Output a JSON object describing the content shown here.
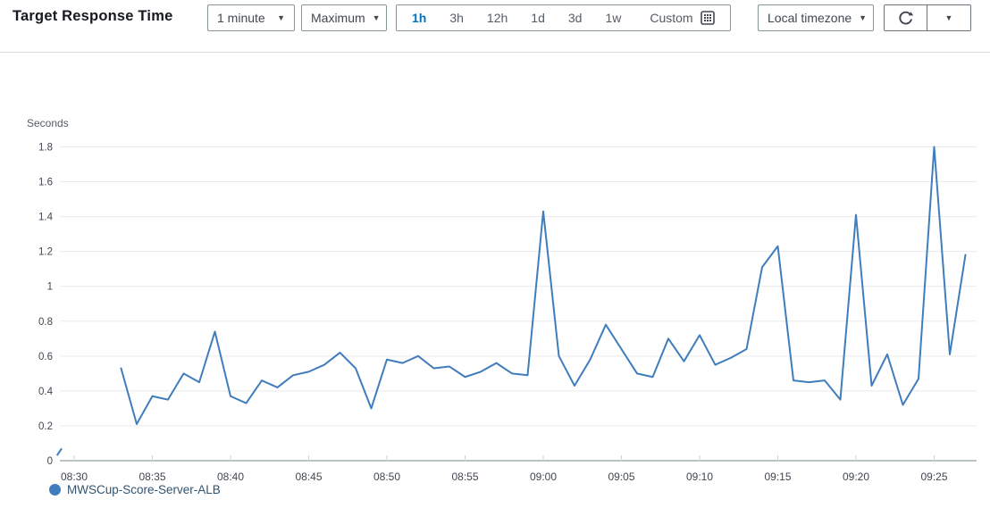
{
  "header": {
    "title": "Target Response Time",
    "period_dropdown": {
      "value": "1 minute"
    },
    "statistic_dropdown": {
      "value": "Maximum"
    },
    "range_options": [
      {
        "label": "1h",
        "selected": true
      },
      {
        "label": "3h",
        "selected": false
      },
      {
        "label": "12h",
        "selected": false
      },
      {
        "label": "1d",
        "selected": false
      },
      {
        "label": "3d",
        "selected": false
      },
      {
        "label": "1w",
        "selected": false
      }
    ],
    "custom_label": "Custom",
    "timezone_dropdown": {
      "value": "Local timezone"
    }
  },
  "colors": {
    "accent_selected_range": "#0073bb",
    "series_blue": "#3f7dbd",
    "grid_line": "#e9eaec",
    "zero_axis": "#bcc3c5",
    "tick_label": "#414750",
    "control_text": "#545b64"
  },
  "chart_data": {
    "type": "line",
    "title": "Target Response Time",
    "ylabel": "Seconds",
    "xlabel": "",
    "ylim": [
      0,
      1.8
    ],
    "grid": true,
    "legend_position": "bottom-left",
    "y_ticks": [
      0,
      0.2,
      0.4,
      0.6,
      0.8,
      1,
      1.2,
      1.4,
      1.6,
      1.8
    ],
    "x_ticks": [
      "08:30",
      "08:35",
      "08:40",
      "08:45",
      "08:50",
      "08:55",
      "09:00",
      "09:05",
      "09:10",
      "09:15",
      "09:20",
      "09:25"
    ],
    "series": [
      {
        "name": "MWSCup-Score-Server-ALB",
        "color": "#3f7dbd",
        "points": [
          [
            "08:33",
            0.53
          ],
          [
            "08:34",
            0.21
          ],
          [
            "08:35",
            0.37
          ],
          [
            "08:36",
            0.35
          ],
          [
            "08:37",
            0.5
          ],
          [
            "08:38",
            0.45
          ],
          [
            "08:39",
            0.74
          ],
          [
            "08:40",
            0.37
          ],
          [
            "08:41",
            0.33
          ],
          [
            "08:42",
            0.46
          ],
          [
            "08:43",
            0.42
          ],
          [
            "08:44",
            0.49
          ],
          [
            "08:45",
            0.51
          ],
          [
            "08:46",
            0.55
          ],
          [
            "08:47",
            0.62
          ],
          [
            "08:48",
            0.53
          ],
          [
            "08:49",
            0.3
          ],
          [
            "08:50",
            0.58
          ],
          [
            "08:51",
            0.56
          ],
          [
            "08:52",
            0.6
          ],
          [
            "08:53",
            0.53
          ],
          [
            "08:54",
            0.54
          ],
          [
            "08:55",
            0.48
          ],
          [
            "08:56",
            0.51
          ],
          [
            "08:57",
            0.56
          ],
          [
            "08:58",
            0.5
          ],
          [
            "08:59",
            0.49
          ],
          [
            "09:00",
            1.43
          ],
          [
            "09:01",
            0.6
          ],
          [
            "09:02",
            0.43
          ],
          [
            "09:03",
            0.58
          ],
          [
            "09:04",
            0.78
          ],
          [
            "09:05",
            0.64
          ],
          [
            "09:06",
            0.5
          ],
          [
            "09:07",
            0.48
          ],
          [
            "09:08",
            0.7
          ],
          [
            "09:09",
            0.57
          ],
          [
            "09:10",
            0.72
          ],
          [
            "09:11",
            0.55
          ],
          [
            "09:12",
            0.59
          ],
          [
            "09:13",
            0.64
          ],
          [
            "09:14",
            1.11
          ],
          [
            "09:15",
            1.23
          ],
          [
            "09:16",
            0.46
          ],
          [
            "09:17",
            0.45
          ],
          [
            "09:18",
            0.46
          ],
          [
            "09:19",
            0.35
          ],
          [
            "09:20",
            1.41
          ],
          [
            "09:21",
            0.43
          ],
          [
            "09:22",
            0.61
          ],
          [
            "09:23",
            0.32
          ],
          [
            "09:24",
            0.47
          ],
          [
            "09:25",
            1.8
          ],
          [
            "09:26",
            0.61
          ],
          [
            "09:27",
            1.18
          ]
        ]
      }
    ],
    "clipped_start_fragment": {
      "x_offsets_min": [
        -1.1,
        -0.8
      ],
      "values": [
        0.03,
        0.07
      ]
    },
    "legend": [
      {
        "label": "MWSCup-Score-Server-ALB",
        "color": "#3f7dbd"
      }
    ]
  }
}
